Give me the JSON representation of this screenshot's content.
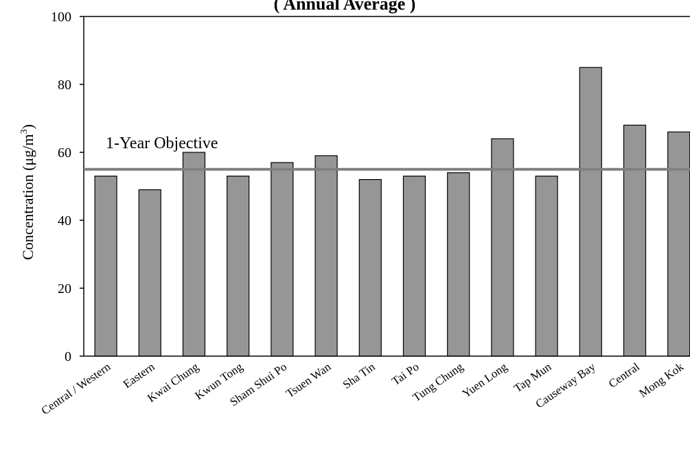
{
  "chart_data": {
    "type": "bar",
    "title": "( Annual Average )",
    "ylabel": "Concentration (μg/m",
    "ylabel_superscript": "3",
    "ylabel_close": ")",
    "xlabel": "",
    "ylim": [
      0,
      100
    ],
    "yticks": [
      0,
      20,
      40,
      60,
      80,
      100
    ],
    "categories": [
      "Central / Western",
      "Eastern",
      "Kwai Chung",
      "Kwun Tong",
      "Sham Shui Po",
      "Tsuen Wan",
      "Sha Tin",
      "Tai Po",
      "Tung Chung",
      "Yuen Long",
      "Tap Mun",
      "Causeway Bay",
      "Central",
      "Mong Kok"
    ],
    "values": [
      53,
      49,
      60,
      53,
      57,
      59,
      52,
      53,
      54,
      64,
      53,
      85,
      68,
      66
    ],
    "bar_color": "#969696",
    "objective": {
      "label": "1-Year Objective",
      "value": 55,
      "color": "#808080"
    },
    "grid": false
  }
}
